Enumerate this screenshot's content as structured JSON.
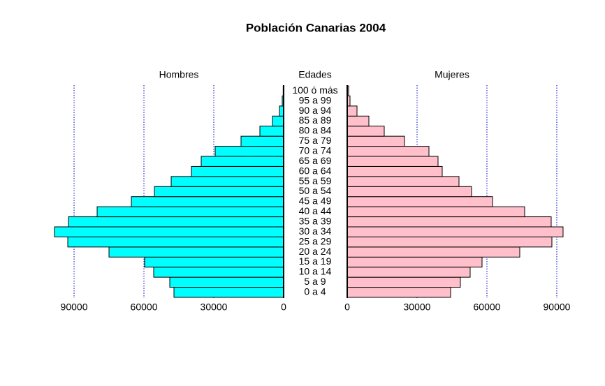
{
  "chart_data": {
    "type": "pyramid",
    "title": "Población Canarias 2004",
    "center_label": "Edades",
    "categories": [
      "0 a 4",
      "5 a 9",
      "10 a 14",
      "15 a 19",
      "20 a 24",
      "25 a 29",
      "30 a 34",
      "35 a 39",
      "40 a 44",
      "45 a 49",
      "50 a 54",
      "55 a 59",
      "60 a 64",
      "65 a 69",
      "70 a 74",
      "75 a 79",
      "80 a 84",
      "85 a 89",
      "90 a 94",
      "95 a 99",
      "100 ó más"
    ],
    "series": [
      {
        "name": "Hombres",
        "color": "#00ffff",
        "values": [
          47100,
          48900,
          55800,
          59700,
          75000,
          92700,
          98400,
          92400,
          80100,
          65400,
          55500,
          48300,
          39600,
          35400,
          29400,
          18300,
          10200,
          4800,
          1800,
          600,
          200
        ]
      },
      {
        "name": "Mujeres",
        "color": "#ffc0cb",
        "values": [
          44400,
          48600,
          52800,
          57900,
          74100,
          87900,
          92700,
          87600,
          76200,
          62400,
          53400,
          48000,
          40800,
          39000,
          35100,
          24600,
          15900,
          9300,
          4200,
          1200,
          600
        ]
      }
    ],
    "xlim": [
      0,
      100000
    ],
    "xticks": [
      0,
      30000,
      60000,
      90000
    ],
    "grid": true,
    "grid_color": "#0000cc"
  }
}
